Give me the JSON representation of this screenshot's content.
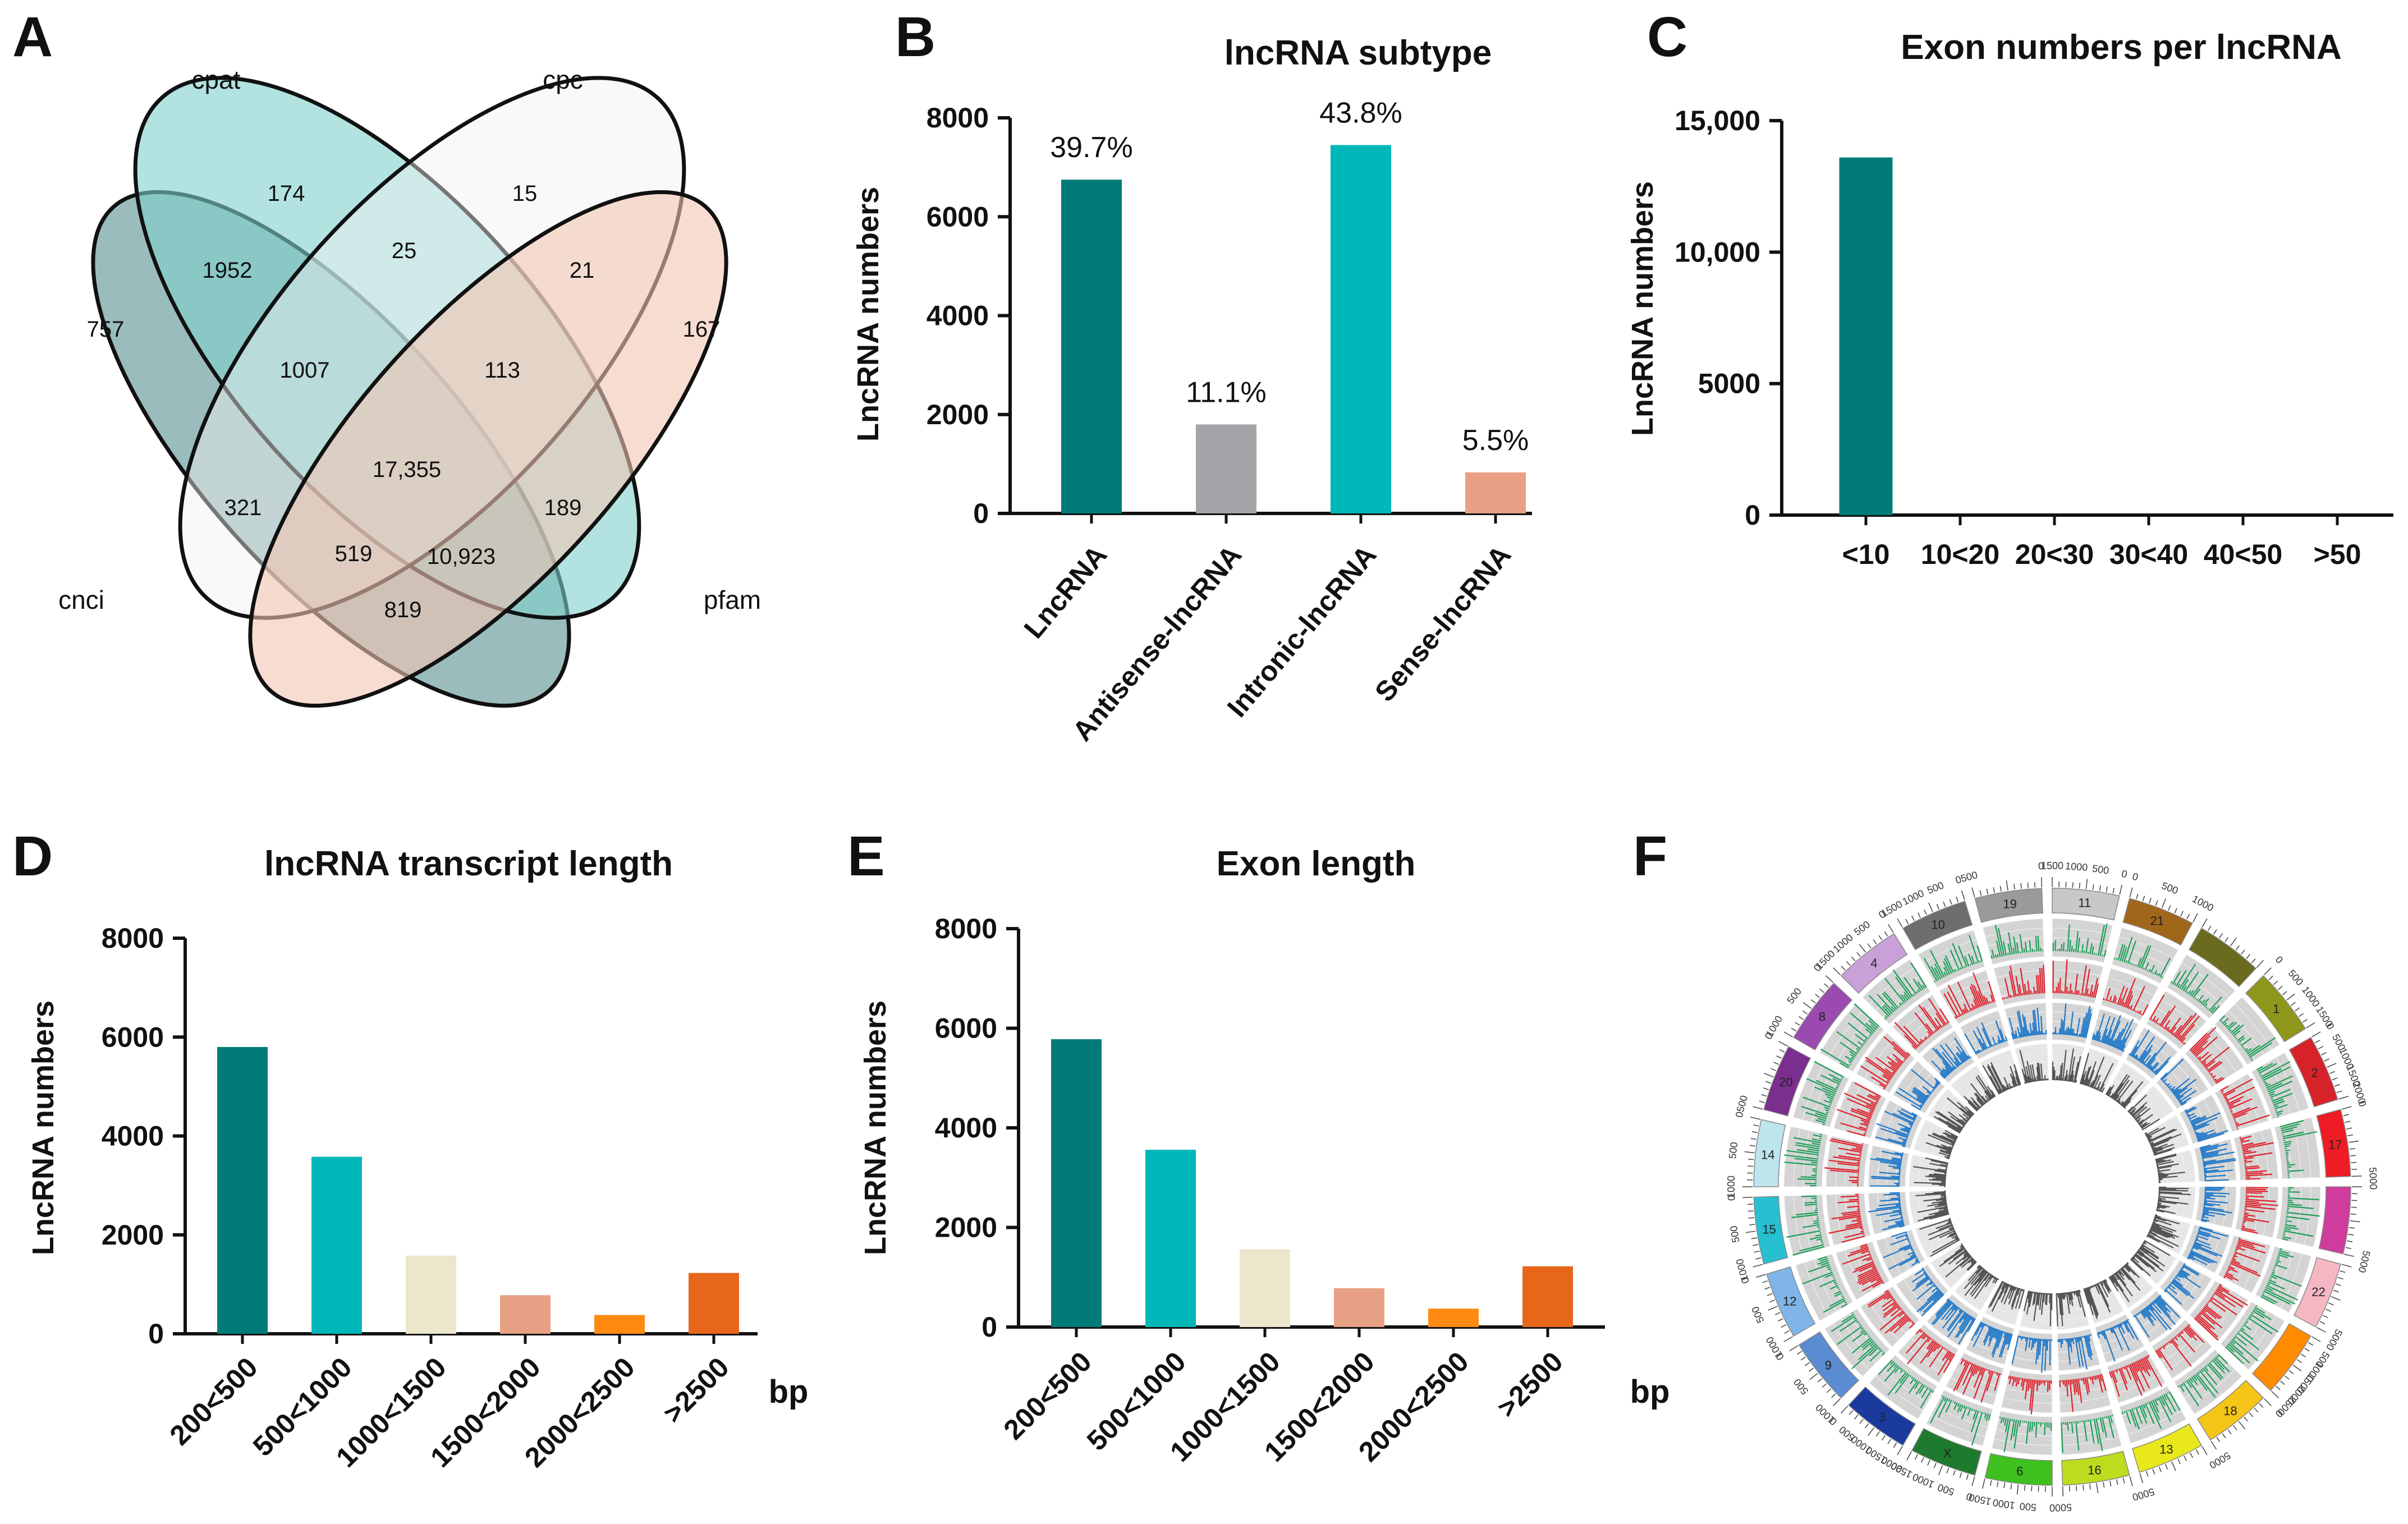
{
  "panels": {
    "A": "A",
    "B": "B",
    "C": "C",
    "D": "D",
    "E": "E",
    "F": "F"
  },
  "colors": {
    "teal_dark": "#007b78",
    "teal": "#00b7b9",
    "grey": "#a3a3a8",
    "salmon": "#e8a084",
    "beige": "#ebe6cc",
    "orange": "#ff8a12",
    "orange_dark": "#e8661a",
    "venn_cnci": "#7aa6a6",
    "venn_cpat": "#7fd0cc",
    "venn_cpc": "#f2f2f2",
    "venn_pfam": "#f2c4b3"
  },
  "venn": {
    "sets": {
      "cnci": "cnci",
      "cpat": "cpat",
      "cpc": "cpc",
      "pfam": "pfam"
    },
    "counts": {
      "cnci_only": "757",
      "cpat_only": "174",
      "cpc_only": "15",
      "pfam_only": "167",
      "cnci_cpat": "1952",
      "cpat_cpc": "25",
      "cpc_pfam": "21",
      "cnci_cpat_cpc": "1007",
      "cpat_cpc_pfam": "113",
      "all": "17,355",
      "cnci_cpc": "321",
      "cpat_pfam": "189",
      "cnci_cpc_pfam": "519",
      "cnci_cpat_pfam": "10,923",
      "cnci_pfam": "819"
    }
  },
  "chart_data": [
    {
      "id": "B",
      "type": "bar",
      "title": "lncRNA subtype",
      "ylabel": "LncRNA numbers",
      "xlabel": "",
      "ylim": [
        0,
        8000
      ],
      "yticks": [
        "0",
        "2000",
        "4000",
        "6000",
        "8000"
      ],
      "categories": [
        "LncRNA",
        "Antisense-lncRNA",
        "Intronic-lncRNA",
        "Sense-lncRNA"
      ],
      "values": [
        6750,
        1800,
        7450,
        830
      ],
      "labels": [
        "39.7%",
        "11.1%",
        "43.8%",
        "5.5%"
      ],
      "colors": [
        "#007b78",
        "#a3a3a8",
        "#00b7b9",
        "#e8a084"
      ]
    },
    {
      "id": "C",
      "type": "bar",
      "title": "Exon numbers per lncRNA",
      "ylabel": "LncRNA numbers",
      "xlabel": "",
      "ylim": [
        0,
        15000
      ],
      "yticks": [
        "0",
        "5000",
        "10,000",
        "15,000"
      ],
      "categories": [
        "<10",
        "10<20",
        "20<30",
        "30<40",
        "40<50",
        ">50"
      ],
      "values": [
        13600,
        0,
        0,
        0,
        0,
        0
      ],
      "colors": [
        "#007b78",
        "#007b78",
        "#007b78",
        "#007b78",
        "#007b78",
        "#007b78"
      ]
    },
    {
      "id": "D",
      "type": "bar",
      "title": "lncRNA transcript length",
      "ylabel": "LncRNA numbers",
      "xlabel": "bp",
      "ylim": [
        0,
        8000
      ],
      "yticks": [
        "0",
        "2000",
        "4000",
        "6000",
        "8000"
      ],
      "categories": [
        "200<500",
        "500<1000",
        "1000<1500",
        "1500<2000",
        "2000<2500",
        ">2500"
      ],
      "values": [
        5800,
        3580,
        1580,
        780,
        380,
        1230
      ],
      "colors": [
        "#007b78",
        "#00b7b9",
        "#ebe6cc",
        "#e8a084",
        "#ff8a12",
        "#e8661a"
      ]
    },
    {
      "id": "E",
      "type": "bar",
      "title": "Exon length",
      "ylabel": "LncRNA numbers",
      "xlabel": "bp",
      "ylim": [
        0,
        8000
      ],
      "yticks": [
        "0",
        "2000",
        "4000",
        "6000",
        "8000"
      ],
      "categories": [
        "200<500",
        "500<1000",
        "1000<1500",
        "1500<2000",
        "2000<2500",
        ">2500"
      ],
      "values": [
        5780,
        3560,
        1560,
        780,
        370,
        1220
      ],
      "colors": [
        "#007b78",
        "#00b7b9",
        "#ebe6cc",
        "#e8a084",
        "#ff8a12",
        "#e8661a"
      ]
    }
  ],
  "circos": {
    "chromosomes": [
      {
        "name": "11",
        "color": "#c8c8c8",
        "ticks": [
          "1500",
          "1000",
          "500",
          "0"
        ]
      },
      {
        "name": "21",
        "color": "#a0661a",
        "ticks": [
          "0",
          "500",
          "1000"
        ]
      },
      {
        "name": "",
        "color": "#6b6b1f",
        "ticks": []
      },
      {
        "name": "1",
        "color": "#8f971a",
        "ticks": [
          "0",
          "500",
          "1000",
          "1500"
        ]
      },
      {
        "name": "2",
        "color": "#d8222a",
        "ticks": [
          "0",
          "500",
          "1000",
          "1500",
          "2000"
        ]
      },
      {
        "name": "17",
        "color": "#ee1c24",
        "ticks": [
          "0",
          "500"
        ]
      },
      {
        "name": "",
        "color": "#d03b9e",
        "ticks": [
          "0",
          "500"
        ]
      },
      {
        "name": "22",
        "color": "#f4b7c3",
        "ticks": [
          "0",
          "500"
        ]
      },
      {
        "name": "",
        "color": "#ff8c00",
        "ticks": [
          "0",
          "500",
          "1000",
          "1500",
          "2000",
          "2500"
        ]
      },
      {
        "name": "18",
        "color": "#f5c518",
        "ticks": [
          "0",
          "500"
        ]
      },
      {
        "name": "13",
        "color": "#e8e81a",
        "ticks": [
          "0",
          "500"
        ]
      },
      {
        "name": "16",
        "color": "#bedb1e",
        "ticks": [
          "0",
          "500"
        ]
      },
      {
        "name": "6",
        "color": "#3ec01e",
        "ticks": [
          "0",
          "500",
          "1000",
          "1500"
        ]
      },
      {
        "name": "X",
        "color": "#1e7a2e",
        "ticks": [
          "0",
          "500",
          "1000",
          "1500"
        ]
      },
      {
        "name": "3",
        "color": "#1a3a9e",
        "ticks": [
          "2000",
          "1500",
          "1000",
          "500",
          "0"
        ]
      },
      {
        "name": "9",
        "color": "#5b8bd0",
        "ticks": [
          "1000",
          "500",
          "0"
        ]
      },
      {
        "name": "12",
        "color": "#7fb5e8",
        "ticks": [
          "1000",
          "500",
          "0"
        ]
      },
      {
        "name": "15",
        "color": "#26c0d0",
        "ticks": [
          "1000",
          "500",
          "0"
        ]
      },
      {
        "name": "14",
        "color": "#bde5ee",
        "ticks": [
          "1000",
          "500",
          "0"
        ]
      },
      {
        "name": "20",
        "color": "#7a2e8e",
        "ticks": [
          "500",
          "0"
        ]
      },
      {
        "name": "8",
        "color": "#9b4ab0",
        "ticks": [
          "1000",
          "500",
          "0"
        ]
      },
      {
        "name": "4",
        "color": "#c9a0d8",
        "ticks": [
          "1500",
          "1000",
          "500",
          "0"
        ]
      },
      {
        "name": "10",
        "color": "#6e6e6e",
        "ticks": [
          "1500",
          "1000",
          "500",
          "0"
        ]
      },
      {
        "name": "19",
        "color": "#9a9a9a",
        "ticks": [
          "500",
          "0"
        ]
      }
    ],
    "track_colors": [
      "#1e9e5a",
      "#e0202a",
      "#1f78c8",
      "#555555"
    ]
  }
}
